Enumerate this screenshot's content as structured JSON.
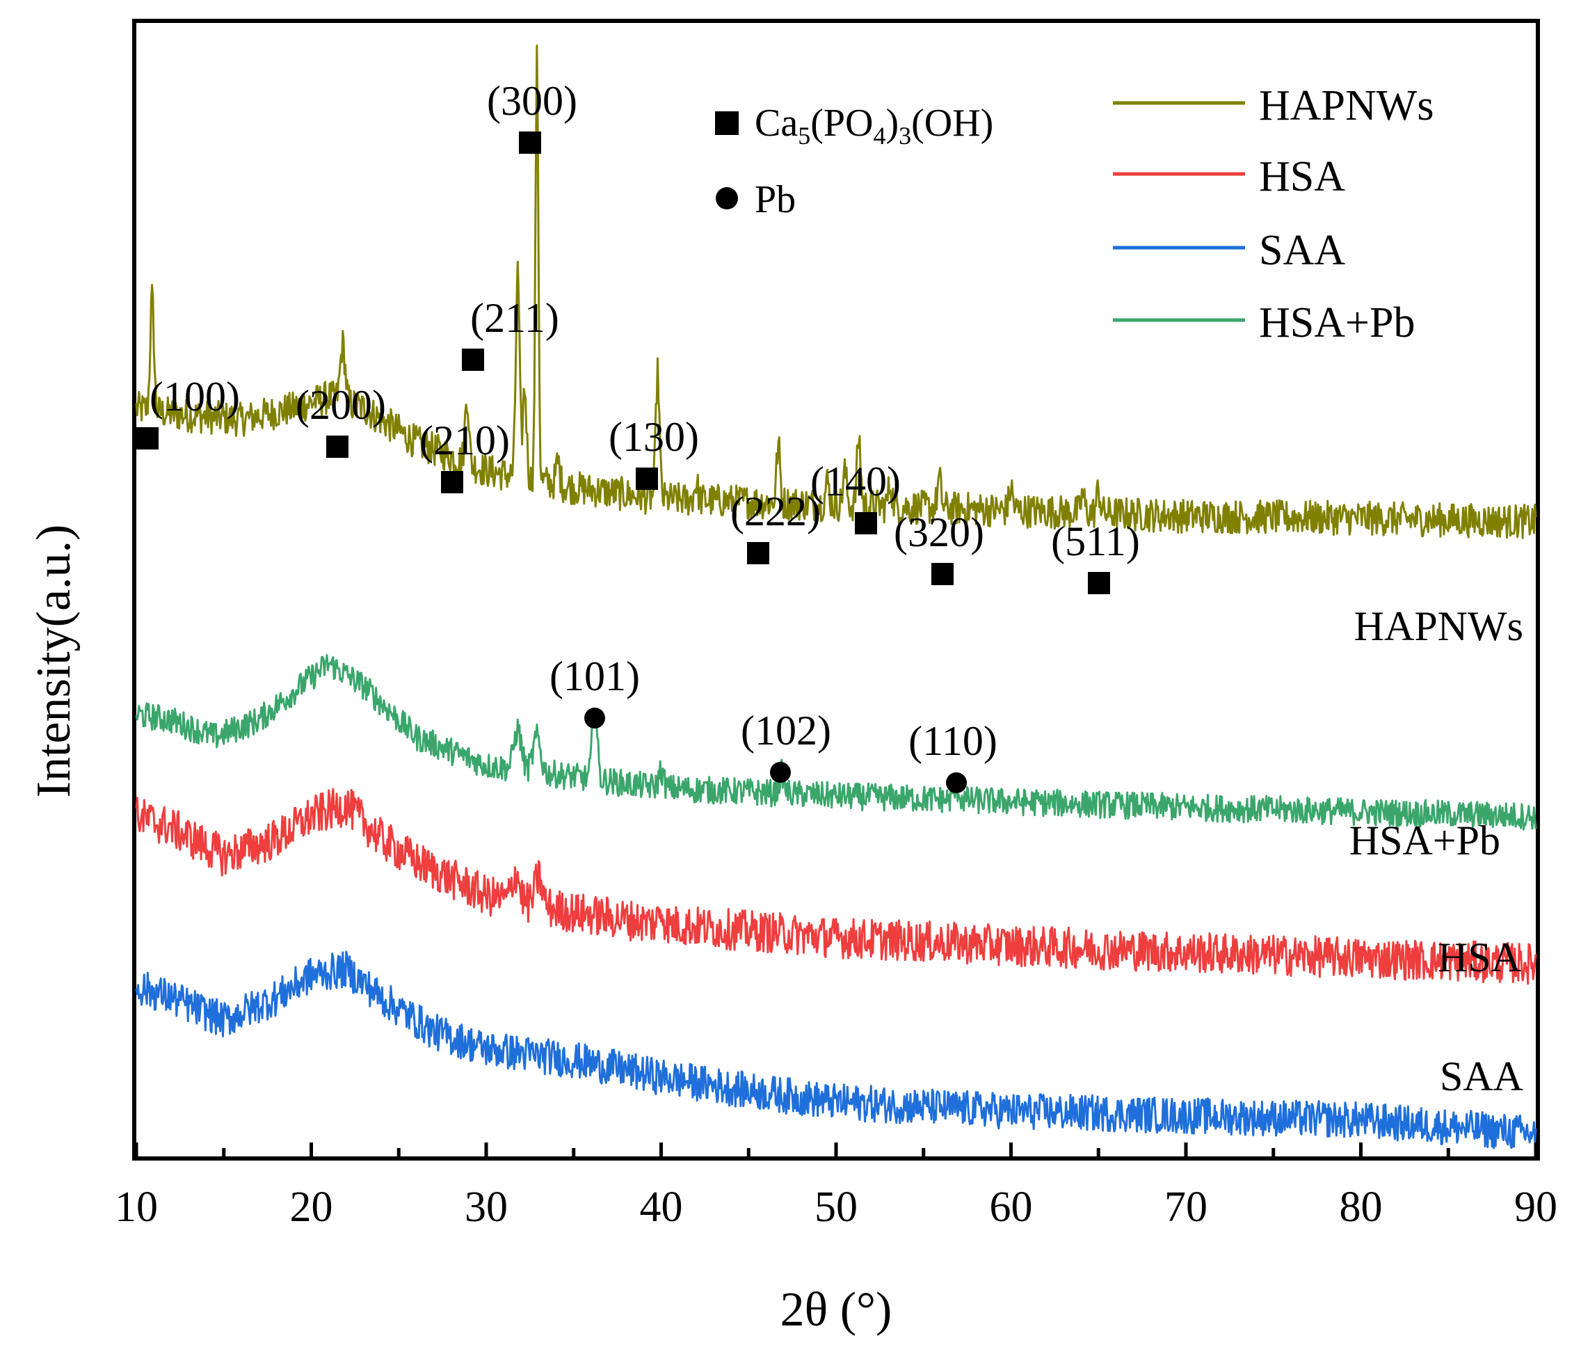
{
  "chart_data": {
    "type": "line",
    "title": "",
    "xlabel": "2θ (°)",
    "ylabel": "Intensity(a.u.)",
    "xlim": [
      10,
      90
    ],
    "ylim": [
      0,
      100
    ],
    "xticks": [
      "10",
      "20",
      "30",
      "40",
      "50",
      "60",
      "70",
      "80",
      "90"
    ],
    "legend": {
      "position": "top-right",
      "items": [
        {
          "name": "HAPNWs",
          "color": "#808000"
        },
        {
          "name": "HSA",
          "color": "#ee3e3e"
        },
        {
          "name": "SAA",
          "color": "#1f6fdb"
        },
        {
          "name": "HSA+Pb",
          "color": "#3aa66b"
        }
      ]
    },
    "marker_legend": [
      {
        "symbol": "square",
        "label_main": "Ca",
        "label_sub1": "5",
        "label_mid": "(PO",
        "label_sub2": "4",
        "label_sub3": "3",
        "label_tail": "(OH)"
      },
      {
        "symbol": "circle",
        "label": "Pb"
      }
    ],
    "series": [
      {
        "name": "HAPNWs",
        "label": "HAPNWs",
        "color": "#808000",
        "offset": 56,
        "baseline": [
          [
            10,
            10
          ],
          [
            12,
            9.5
          ],
          [
            16,
            9
          ],
          [
            19,
            10
          ],
          [
            21,
            11
          ],
          [
            23,
            10
          ],
          [
            26,
            7
          ],
          [
            30,
            4.5
          ],
          [
            35,
            3
          ],
          [
            40,
            2
          ],
          [
            50,
            1.5
          ],
          [
            60,
            1
          ],
          [
            70,
            0.5
          ],
          [
            80,
            0.3
          ],
          [
            90,
            0
          ]
        ],
        "peaks": [
          [
            10.9,
            10,
            0.15
          ],
          [
            21.8,
            5,
            0.2
          ],
          [
            28.9,
            6,
            0.15
          ],
          [
            31.8,
            18,
            0.15
          ],
          [
            32.2,
            8,
            0.15
          ],
          [
            32.9,
            37,
            0.12
          ],
          [
            34.1,
            2,
            0.15
          ],
          [
            39.8,
            11,
            0.15
          ],
          [
            42,
            1.5,
            0.15
          ],
          [
            46.7,
            5,
            0.15
          ],
          [
            49.5,
            2,
            0.15
          ],
          [
            50.5,
            3,
            0.15
          ],
          [
            51.3,
            6,
            0.15
          ],
          [
            53.1,
            2,
            0.15
          ],
          [
            55.9,
            2.5,
            0.15
          ],
          [
            60,
            2,
            0.15
          ],
          [
            64.1,
            1.5,
            0.15
          ],
          [
            65,
            2,
            0.15
          ]
        ],
        "noise": 1.5
      },
      {
        "name": "HSA+Pb",
        "label": "HSA+Pb",
        "color": "#3aa66b",
        "offset": 30,
        "baseline": [
          [
            10,
            9
          ],
          [
            12,
            8.5
          ],
          [
            14.5,
            7
          ],
          [
            17,
            8.5
          ],
          [
            19,
            11
          ],
          [
            21,
            13.5
          ],
          [
            23,
            11.5
          ],
          [
            26,
            7
          ],
          [
            30,
            4.5
          ],
          [
            35,
            3.5
          ],
          [
            40,
            2.5
          ],
          [
            50,
            1.8
          ],
          [
            60,
            1.3
          ],
          [
            70,
            0.8
          ],
          [
            80,
            0.4
          ],
          [
            90,
            0
          ]
        ],
        "peaks": [
          [
            31.8,
            3.5,
            0.3
          ],
          [
            32.9,
            3,
            0.3
          ],
          [
            36.2,
            6.5,
            0.2
          ],
          [
            40,
            1.5,
            0.2
          ],
          [
            46.9,
            1.8,
            0.2
          ],
          [
            56.9,
            1,
            0.2
          ]
        ],
        "noise": 1.2
      },
      {
        "name": "HSA",
        "label": "HSA",
        "color": "#ee3e3e",
        "offset": 17,
        "baseline": [
          [
            10,
            13
          ],
          [
            12,
            12
          ],
          [
            15,
            9.5
          ],
          [
            18,
            11
          ],
          [
            20,
            13
          ],
          [
            22,
            14
          ],
          [
            24,
            11
          ],
          [
            26,
            9
          ],
          [
            30,
            6
          ],
          [
            35,
            4.5
          ],
          [
            40,
            3.5
          ],
          [
            50,
            2.3
          ],
          [
            60,
            1.6
          ],
          [
            70,
            1
          ],
          [
            80,
            0.5
          ],
          [
            90,
            0
          ]
        ],
        "peaks": [
          [
            31.7,
            2.5,
            0.3
          ],
          [
            33,
            2.5,
            0.3
          ],
          [
            40,
            1.2,
            0.2
          ]
        ],
        "noise": 1.8
      },
      {
        "name": "SAA",
        "label": "SAA",
        "color": "#1f6fdb",
        "offset": 2,
        "baseline": [
          [
            10,
            13
          ],
          [
            12,
            12
          ],
          [
            15,
            10
          ],
          [
            18,
            12
          ],
          [
            20,
            14
          ],
          [
            22,
            14.5
          ],
          [
            24,
            12
          ],
          [
            27,
            9
          ],
          [
            30,
            7.5
          ],
          [
            35,
            6.5
          ],
          [
            40,
            5
          ],
          [
            45,
            3.8
          ],
          [
            50,
            2.8
          ],
          [
            60,
            2
          ],
          [
            70,
            1.6
          ],
          [
            80,
            1.2
          ],
          [
            90,
            0
          ]
        ],
        "peaks": [],
        "noise": 1.6
      }
    ],
    "annotations": [
      {
        "text": "(100)",
        "x": 10.9,
        "marker": "square"
      },
      {
        "text": "(200)",
        "x": 21.8,
        "marker": "square"
      },
      {
        "text": "(210)",
        "x": 28.9,
        "marker": "square"
      },
      {
        "text": "(211)",
        "x": 31.6,
        "marker": "square"
      },
      {
        "text": "(300)",
        "x": 32.6,
        "marker": "square"
      },
      {
        "text": "(130)",
        "x": 39.6,
        "marker": "square"
      },
      {
        "text": "(222)",
        "x": 46.5,
        "marker": "square"
      },
      {
        "text": "(140)",
        "x": 51.2,
        "marker": "square"
      },
      {
        "text": "(320)",
        "x": 55.8,
        "marker": "square"
      },
      {
        "text": "(511)",
        "x": 64.9,
        "marker": "square"
      },
      {
        "text": "(101)",
        "x": 36.1,
        "marker": "circle"
      },
      {
        "text": "(102)",
        "x": 46.8,
        "marker": "circle"
      },
      {
        "text": "(110)",
        "x": 56.8,
        "marker": "circle"
      }
    ]
  }
}
